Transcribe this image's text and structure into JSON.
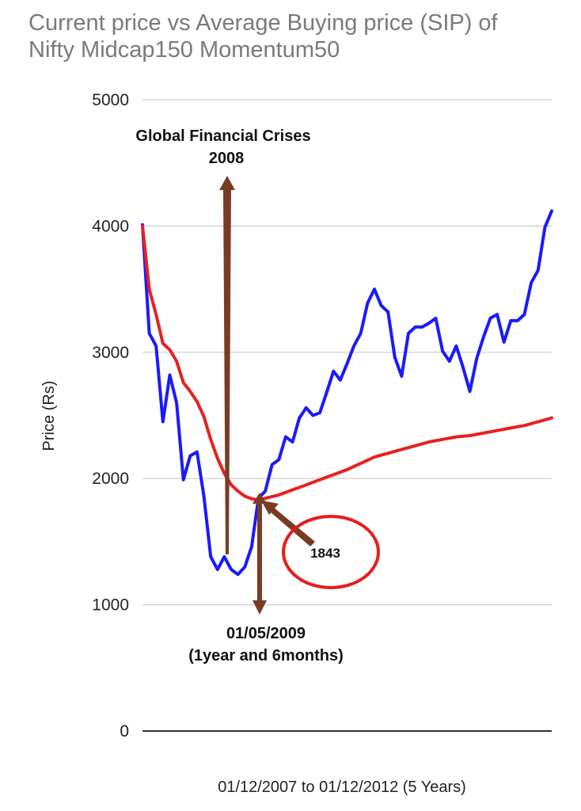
{
  "chart_data": {
    "type": "line",
    "title_lines": [
      "Current price vs Average Buying price (SIP) of",
      "Nifty Midcap150 Momentum50"
    ],
    "ylabel": "Price (Rs)",
    "xlabel": "01/12/2007 to 01/12/2012 (5 Years)",
    "ylim": [
      0,
      5000
    ],
    "yticks": [
      0,
      1000,
      2000,
      3000,
      4000,
      5000
    ],
    "grid": true,
    "x_start": "01/12/2007",
    "x_end": "01/12/2012",
    "series": [
      {
        "color": "#1a1aff",
        "x": [
          0,
          1,
          2,
          3,
          4,
          5,
          6,
          7,
          8,
          9,
          10,
          11,
          12,
          13,
          14,
          15,
          16,
          17,
          18,
          19,
          20,
          21,
          22,
          23,
          24,
          25,
          26,
          27,
          28,
          29,
          30,
          31,
          32,
          33,
          34,
          35,
          36,
          37,
          38,
          39,
          40,
          41,
          42,
          43,
          44,
          45,
          46,
          47,
          48,
          49,
          50,
          51,
          52,
          53,
          54,
          55,
          56,
          57,
          58,
          59,
          60
        ],
        "values": [
          4010,
          3150,
          3050,
          2450,
          2820,
          2600,
          1990,
          2180,
          2210,
          1860,
          1380,
          1280,
          1380,
          1280,
          1240,
          1300,
          1460,
          1843,
          1900,
          2110,
          2150,
          2330,
          2290,
          2480,
          2560,
          2500,
          2520,
          2680,
          2850,
          2780,
          2910,
          3050,
          3150,
          3390,
          3500,
          3370,
          3320,
          2960,
          2810,
          3150,
          3200,
          3200,
          3230,
          3270,
          3010,
          2930,
          3050,
          2880,
          2690,
          2950,
          3120,
          3270,
          3300,
          3080,
          3250,
          3250,
          3300,
          3550,
          3650,
          3990,
          4120
        ]
      },
      {
        "color": "#e82020",
        "x": [
          0,
          1,
          2,
          3,
          4,
          5,
          6,
          7,
          8,
          9,
          10,
          11,
          12,
          13,
          14,
          15,
          16,
          17,
          18,
          20,
          22,
          24,
          26,
          28,
          30,
          32,
          34,
          36,
          38,
          40,
          42,
          44,
          46,
          48,
          50,
          52,
          54,
          56,
          58,
          60
        ],
        "values": [
          4000,
          3500,
          3300,
          3070,
          3020,
          2930,
          2760,
          2690,
          2610,
          2490,
          2310,
          2160,
          2040,
          1950,
          1900,
          1860,
          1840,
          1830,
          1843,
          1870,
          1910,
          1950,
          1990,
          2030,
          2070,
          2120,
          2170,
          2200,
          2230,
          2260,
          2290,
          2310,
          2330,
          2340,
          2360,
          2380,
          2400,
          2420,
          2450,
          2480
        ]
      }
    ],
    "annotations": {
      "crisis_lines": [
        "Global Financial Crises",
        "2008"
      ],
      "date_lines": [
        "01/05/2009",
        "(1year and 6months)"
      ],
      "value_label": "1843"
    }
  }
}
